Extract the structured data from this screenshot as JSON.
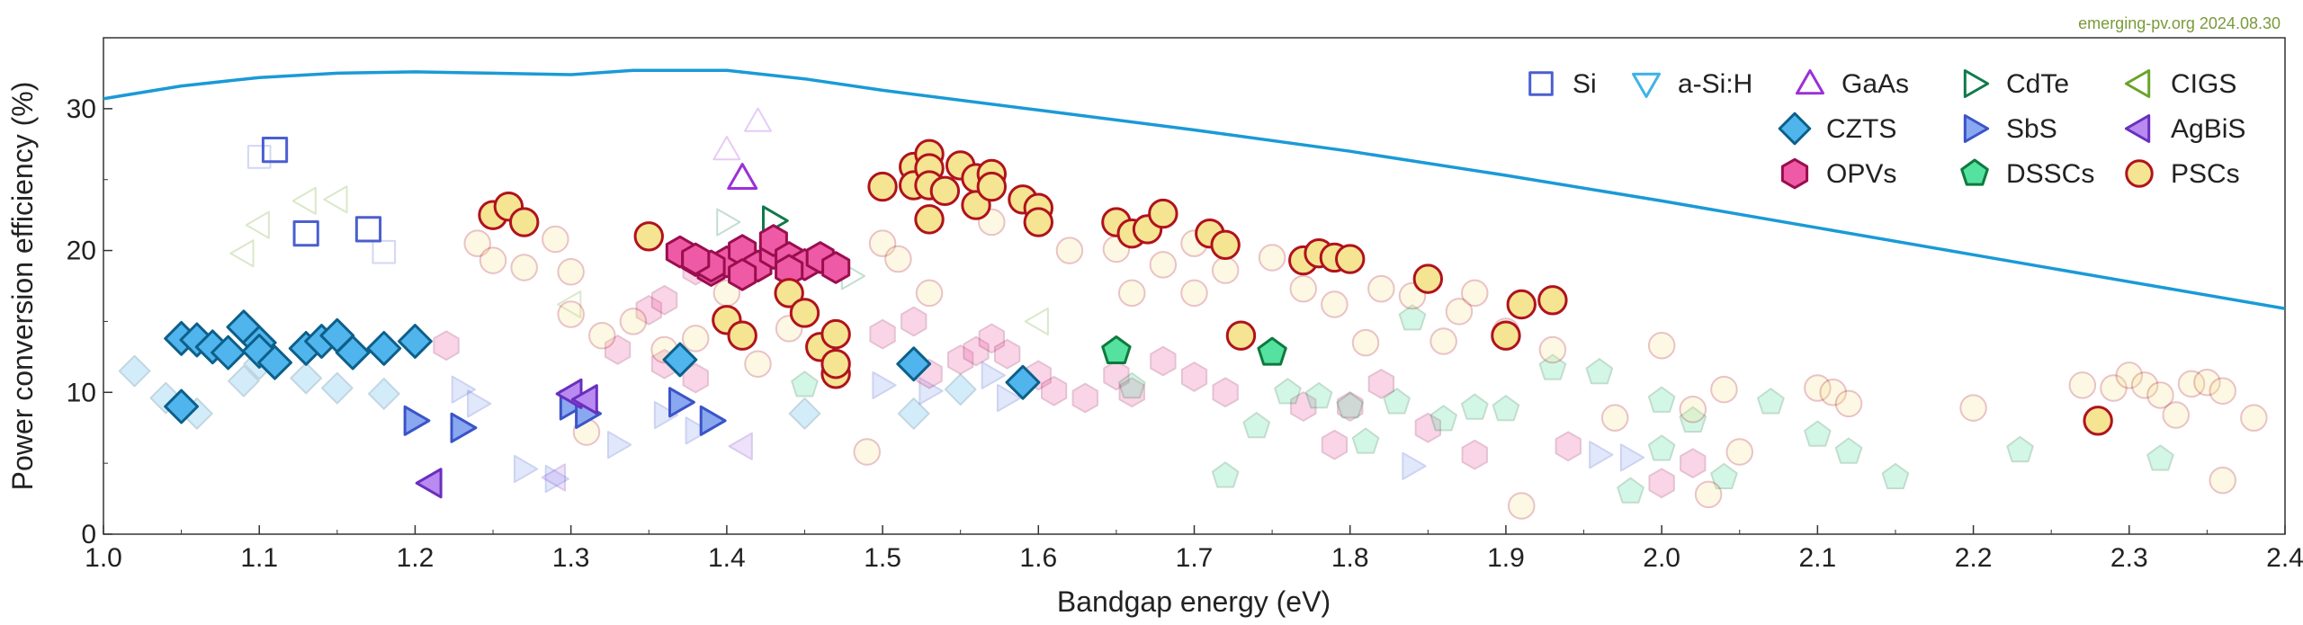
{
  "chart_data": {
    "type": "scatter",
    "source_note": "emerging-pv.org 2024.08.30",
    "xlabel": "Bandgap energy (eV)",
    "ylabel": "Power conversion efficiency (%)",
    "xlim": [
      1.0,
      2.4
    ],
    "ylim": [
      0,
      35
    ],
    "x_ticks": [
      "1.0",
      "1.1",
      "1.2",
      "1.3",
      "1.4",
      "1.5",
      "1.6",
      "1.7",
      "1.8",
      "1.9",
      "2.0",
      "2.1",
      "2.2",
      "2.3",
      "2.4"
    ],
    "y_ticks": [
      "0",
      "10",
      "20",
      "30"
    ],
    "grid": false,
    "legend_position": "top-right",
    "sq_limit": {
      "x": [
        1.0,
        1.05,
        1.1,
        1.15,
        1.2,
        1.25,
        1.3,
        1.34,
        1.4,
        1.45,
        1.5,
        1.6,
        1.7,
        1.8,
        1.9,
        2.0,
        2.1,
        2.2,
        2.3,
        2.4
      ],
      "y": [
        30.7,
        31.6,
        32.2,
        32.5,
        32.6,
        32.5,
        32.4,
        32.7,
        32.7,
        32.1,
        31.3,
        29.9,
        28.5,
        27.0,
        25.3,
        23.5,
        21.6,
        19.7,
        17.8,
        15.9
      ],
      "color": "#1a9ad6"
    },
    "series": [
      {
        "name": "Si",
        "marker": "square",
        "stroke": "#4a5fd0",
        "fill": "none",
        "points": [
          [
            1.11,
            27.1
          ],
          [
            1.13,
            21.2
          ],
          [
            1.17,
            21.5
          ]
        ],
        "faded": [
          [
            1.1,
            26.6
          ],
          [
            1.18,
            19.9
          ]
        ]
      },
      {
        "name": "a-Si:H",
        "marker": "triangle-down",
        "stroke": "#3fb3e8",
        "fill": "none",
        "points": [],
        "faded": []
      },
      {
        "name": "GaAs",
        "marker": "triangle-up",
        "stroke": "#9b30d8",
        "fill": "none",
        "points": [
          [
            1.41,
            25.1
          ]
        ],
        "faded": [
          [
            1.4,
            27.1
          ],
          [
            1.42,
            29.1
          ]
        ]
      },
      {
        "name": "CdTe",
        "marker": "triangle-right",
        "stroke": "#0f7a4a",
        "fill": "none",
        "points": [
          [
            1.43,
            22.1
          ]
        ],
        "faded": [
          [
            1.4,
            22.0
          ],
          [
            1.48,
            18.2
          ]
        ]
      },
      {
        "name": "CIGS",
        "marker": "triangle-left",
        "stroke": "#6aa32a",
        "fill": "none",
        "points": [],
        "faded": [
          [
            1.09,
            19.8
          ],
          [
            1.1,
            21.8
          ],
          [
            1.13,
            23.5
          ],
          [
            1.15,
            23.6
          ],
          [
            1.3,
            16.2
          ],
          [
            1.6,
            15.0
          ]
        ]
      },
      {
        "name": "CZTS",
        "marker": "diamond",
        "stroke": "#0d5f8a",
        "fill": "#4fb5ec",
        "points": [
          [
            1.05,
            13.8
          ],
          [
            1.06,
            13.7
          ],
          [
            1.07,
            13.2
          ],
          [
            1.08,
            12.8
          ],
          [
            1.09,
            14.6
          ],
          [
            1.1,
            13.5
          ],
          [
            1.1,
            12.9
          ],
          [
            1.11,
            12.1
          ],
          [
            1.13,
            13.1
          ],
          [
            1.14,
            13.6
          ],
          [
            1.15,
            14.0
          ],
          [
            1.16,
            12.8
          ],
          [
            1.18,
            13.1
          ],
          [
            1.2,
            13.6
          ],
          [
            1.05,
            9.0
          ],
          [
            1.37,
            12.3
          ],
          [
            1.52,
            12.0
          ],
          [
            1.59,
            10.7
          ]
        ],
        "faded": [
          [
            1.02,
            11.5
          ],
          [
            1.04,
            9.6
          ],
          [
            1.06,
            8.5
          ],
          [
            1.09,
            10.8
          ],
          [
            1.1,
            12.0
          ],
          [
            1.13,
            11.0
          ],
          [
            1.15,
            10.3
          ],
          [
            1.18,
            9.9
          ],
          [
            1.45,
            8.5
          ],
          [
            1.52,
            8.5
          ],
          [
            1.55,
            10.2
          ]
        ]
      },
      {
        "name": "SbS",
        "marker": "triangle-right",
        "stroke": "#3b54c8",
        "fill": "#8aa8f0",
        "points": [
          [
            1.2,
            8.0
          ],
          [
            1.23,
            7.5
          ],
          [
            1.3,
            9.1
          ],
          [
            1.31,
            8.5
          ],
          [
            1.37,
            9.3
          ],
          [
            1.39,
            8.0
          ]
        ],
        "faded": [
          [
            1.23,
            10.2
          ],
          [
            1.24,
            9.2
          ],
          [
            1.27,
            4.6
          ],
          [
            1.29,
            3.9
          ],
          [
            1.33,
            6.3
          ],
          [
            1.36,
            8.4
          ],
          [
            1.38,
            7.3
          ],
          [
            1.5,
            10.5
          ],
          [
            1.53,
            10.1
          ],
          [
            1.57,
            11.2
          ],
          [
            1.58,
            9.6
          ],
          [
            1.84,
            4.8
          ],
          [
            1.96,
            5.6
          ],
          [
            1.98,
            5.4
          ]
        ]
      },
      {
        "name": "AgBiS",
        "marker": "triangle-left",
        "stroke": "#6a2fbf",
        "fill": "#b98af0",
        "points": [
          [
            1.21,
            3.6
          ],
          [
            1.3,
            9.9
          ],
          [
            1.31,
            9.5
          ]
        ],
        "faded": [
          [
            1.41,
            6.2
          ],
          [
            1.29,
            4.0
          ]
        ]
      },
      {
        "name": "OPVs",
        "marker": "hexagon",
        "stroke": "#9a0e4e",
        "fill": "#ee5aa6",
        "points": [
          [
            1.37,
            19.9
          ],
          [
            1.38,
            19.3
          ],
          [
            1.39,
            18.6
          ],
          [
            1.4,
            19.2
          ],
          [
            1.41,
            20.0
          ],
          [
            1.42,
            18.9
          ],
          [
            1.43,
            19.8
          ],
          [
            1.43,
            20.7
          ],
          [
            1.44,
            19.5
          ],
          [
            1.45,
            19.0
          ],
          [
            1.46,
            19.5
          ],
          [
            1.47,
            18.8
          ],
          [
            1.41,
            18.3
          ],
          [
            1.39,
            18.9
          ],
          [
            1.44,
            18.6
          ],
          [
            1.38,
            19.4
          ]
        ],
        "faded": [
          [
            1.22,
            13.3
          ],
          [
            1.33,
            13.0
          ],
          [
            1.36,
            12.0
          ],
          [
            1.38,
            11.0
          ],
          [
            1.35,
            15.8
          ],
          [
            1.36,
            16.5
          ],
          [
            1.38,
            18.6
          ],
          [
            1.5,
            14.1
          ],
          [
            1.52,
            15.0
          ],
          [
            1.53,
            11.3
          ],
          [
            1.55,
            12.3
          ],
          [
            1.56,
            12.9
          ],
          [
            1.57,
            13.8
          ],
          [
            1.58,
            12.7
          ],
          [
            1.6,
            11.2
          ],
          [
            1.61,
            10.1
          ],
          [
            1.63,
            9.6
          ],
          [
            1.65,
            11.2
          ],
          [
            1.66,
            10.0
          ],
          [
            1.68,
            12.2
          ],
          [
            1.7,
            11.1
          ],
          [
            1.72,
            10.0
          ],
          [
            1.77,
            9.0
          ],
          [
            1.79,
            6.3
          ],
          [
            1.8,
            9.0
          ],
          [
            1.82,
            10.6
          ],
          [
            1.85,
            7.5
          ],
          [
            1.88,
            5.6
          ],
          [
            1.94,
            6.2
          ],
          [
            2.0,
            3.6
          ],
          [
            2.02,
            5.0
          ]
        ]
      },
      {
        "name": "DSSCs",
        "marker": "pentagon",
        "stroke": "#0e7a3e",
        "fill": "#55e2a0",
        "points": [
          [
            1.65,
            12.9
          ],
          [
            1.75,
            12.8
          ]
        ],
        "faded": [
          [
            1.45,
            10.5
          ],
          [
            1.66,
            10.4
          ],
          [
            1.72,
            4.1
          ],
          [
            1.74,
            7.6
          ],
          [
            1.76,
            10.0
          ],
          [
            1.78,
            9.7
          ],
          [
            1.8,
            9.0
          ],
          [
            1.81,
            6.5
          ],
          [
            1.83,
            9.3
          ],
          [
            1.84,
            15.2
          ],
          [
            1.86,
            8.1
          ],
          [
            1.88,
            8.9
          ],
          [
            1.9,
            8.8
          ],
          [
            1.93,
            11.7
          ],
          [
            1.96,
            11.4
          ],
          [
            1.98,
            3.0
          ],
          [
            2.0,
            6.0
          ],
          [
            2.0,
            9.4
          ],
          [
            2.02,
            8.0
          ],
          [
            2.04,
            4.0
          ],
          [
            2.07,
            9.3
          ],
          [
            2.1,
            7.0
          ],
          [
            2.12,
            5.8
          ],
          [
            2.15,
            4.0
          ],
          [
            2.23,
            5.9
          ],
          [
            2.32,
            5.3
          ]
        ]
      },
      {
        "name": "PSCs",
        "marker": "circle",
        "stroke": "#b0121d",
        "fill": "#f5e492",
        "points": [
          [
            1.25,
            22.5
          ],
          [
            1.26,
            23.1
          ],
          [
            1.27,
            22.0
          ],
          [
            1.35,
            21.0
          ],
          [
            1.4,
            15.1
          ],
          [
            1.41,
            14.0
          ],
          [
            1.44,
            17.0
          ],
          [
            1.45,
            15.6
          ],
          [
            1.46,
            13.2
          ],
          [
            1.47,
            14.1
          ],
          [
            1.47,
            11.3
          ],
          [
            1.47,
            12.0
          ],
          [
            1.5,
            24.5
          ],
          [
            1.52,
            25.9
          ],
          [
            1.52,
            24.6
          ],
          [
            1.53,
            26.8
          ],
          [
            1.53,
            25.8
          ],
          [
            1.53,
            24.6
          ],
          [
            1.53,
            22.2
          ],
          [
            1.54,
            24.2
          ],
          [
            1.55,
            26.0
          ],
          [
            1.56,
            25.1
          ],
          [
            1.56,
            23.2
          ],
          [
            1.57,
            25.4
          ],
          [
            1.57,
            24.5
          ],
          [
            1.59,
            23.6
          ],
          [
            1.6,
            23.0
          ],
          [
            1.6,
            22.0
          ],
          [
            1.65,
            22.0
          ],
          [
            1.66,
            21.2
          ],
          [
            1.67,
            21.5
          ],
          [
            1.68,
            22.6
          ],
          [
            1.71,
            21.2
          ],
          [
            1.72,
            20.4
          ],
          [
            1.73,
            14.0
          ],
          [
            1.77,
            19.3
          ],
          [
            1.78,
            19.8
          ],
          [
            1.79,
            19.5
          ],
          [
            1.8,
            19.4
          ],
          [
            1.85,
            18.0
          ],
          [
            1.9,
            14.0
          ],
          [
            1.91,
            16.2
          ],
          [
            1.93,
            16.5
          ],
          [
            2.28,
            8.0
          ]
        ],
        "faded": [
          [
            1.24,
            20.5
          ],
          [
            1.25,
            19.3
          ],
          [
            1.27,
            18.8
          ],
          [
            1.29,
            20.8
          ],
          [
            1.3,
            18.5
          ],
          [
            1.3,
            15.5
          ],
          [
            1.31,
            7.2
          ],
          [
            1.32,
            14.0
          ],
          [
            1.34,
            15.0
          ],
          [
            1.36,
            13.0
          ],
          [
            1.38,
            13.8
          ],
          [
            1.4,
            17.0
          ],
          [
            1.42,
            12.0
          ],
          [
            1.44,
            14.5
          ],
          [
            1.49,
            5.8
          ],
          [
            1.5,
            20.5
          ],
          [
            1.51,
            19.4
          ],
          [
            1.53,
            17.0
          ],
          [
            1.57,
            22.0
          ],
          [
            1.6,
            22.5
          ],
          [
            1.62,
            20.0
          ],
          [
            1.65,
            20.1
          ],
          [
            1.66,
            17.0
          ],
          [
            1.68,
            19.0
          ],
          [
            1.7,
            20.5
          ],
          [
            1.7,
            17.0
          ],
          [
            1.72,
            18.6
          ],
          [
            1.75,
            19.5
          ],
          [
            1.77,
            17.3
          ],
          [
            1.79,
            16.2
          ],
          [
            1.81,
            13.5
          ],
          [
            1.82,
            17.3
          ],
          [
            1.84,
            16.8
          ],
          [
            1.86,
            13.6
          ],
          [
            1.87,
            15.7
          ],
          [
            1.88,
            17.0
          ],
          [
            1.9,
            14.3
          ],
          [
            1.91,
            2.0
          ],
          [
            1.93,
            13.0
          ],
          [
            1.97,
            8.2
          ],
          [
            2.0,
            13.3
          ],
          [
            2.02,
            8.8
          ],
          [
            2.04,
            10.2
          ],
          [
            2.05,
            5.8
          ],
          [
            2.1,
            10.3
          ],
          [
            2.11,
            10.0
          ],
          [
            2.12,
            9.2
          ],
          [
            2.2,
            8.9
          ],
          [
            2.27,
            10.5
          ],
          [
            2.29,
            10.3
          ],
          [
            2.3,
            11.2
          ],
          [
            2.31,
            10.5
          ],
          [
            2.32,
            9.8
          ],
          [
            2.33,
            8.4
          ],
          [
            2.34,
            10.6
          ],
          [
            2.35,
            10.7
          ],
          [
            2.36,
            10.1
          ],
          [
            2.38,
            8.2
          ],
          [
            2.36,
            3.8
          ],
          [
            2.03,
            2.8
          ]
        ]
      }
    ]
  }
}
